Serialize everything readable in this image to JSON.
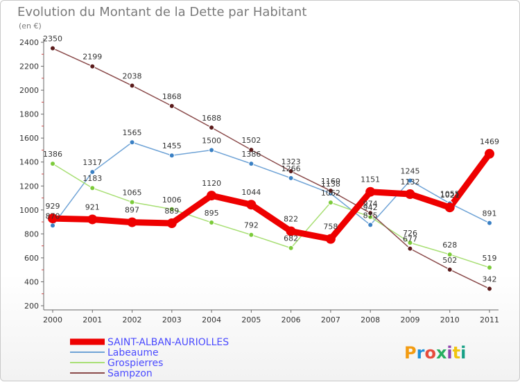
{
  "header": {
    "title": "Evolution du Montant de la Dette par Habitant",
    "unit": "(en €)"
  },
  "logo": {
    "text": "Proxiti",
    "colors": [
      "#f39c12",
      "#1f8fd6",
      "#e74c3c",
      "#27ae60",
      "#8e44ad",
      "#f1c40f",
      "#16a085"
    ]
  },
  "chart_data": {
    "type": "line",
    "title": "Evolution du Montant de la Dette par Habitant",
    "ylabel": "(en €)",
    "xlabel": "",
    "ylim": [
      200,
      2400
    ],
    "yticks": [
      200,
      400,
      600,
      800,
      1000,
      1200,
      1400,
      1600,
      1800,
      2000,
      2200,
      2400
    ],
    "categories": [
      "2000",
      "2001",
      "2002",
      "2003",
      "2004",
      "2005",
      "2006",
      "2007",
      "2008",
      "2009",
      "2010",
      "2011"
    ],
    "grid": false,
    "legend_position": "bottom-left",
    "series": [
      {
        "name": "Labeaume",
        "color": "#6fa3d6",
        "marker": "#3a80c4",
        "values": [
          870,
          1317,
          1565,
          1455,
          1500,
          1386,
          1266,
          1138,
          875,
          1245,
          1055,
          891
        ],
        "labels": [
          "870",
          "1317",
          "1565",
          "1455",
          "1500",
          "1386",
          "1266",
          "1138",
          "875",
          "1245",
          "1055",
          "891"
        ]
      },
      {
        "name": "Grospierres",
        "color": "#a8df74",
        "marker": "#7ccb3a",
        "values": [
          1386,
          1183,
          1065,
          1006,
          895,
          792,
          682,
          1062,
          942,
          726,
          628,
          519
        ],
        "labels": [
          "1386",
          "1183",
          "1065",
          "1006",
          "895",
          "792",
          "682",
          "1062",
          "942",
          "726",
          "628",
          "519"
        ]
      },
      {
        "name": "Sampzon",
        "color": "#8a4a4a",
        "marker": "#5a1a1a",
        "values": [
          2350,
          2199,
          2038,
          1868,
          1688,
          1502,
          1323,
          1160,
          974,
          677,
          502,
          342
        ],
        "labels": [
          "2350",
          "2199",
          "2038",
          "1868",
          "1688",
          "1502",
          "1323",
          "1160",
          "974",
          "677",
          "502",
          "342"
        ]
      },
      {
        "name": "SAINT-ALBAN-AURIOLLES",
        "color": "#ee0000",
        "marker": "#ee0000",
        "values": [
          929,
          921,
          897,
          889,
          1120,
          1044,
          822,
          758,
          1151,
          1132,
          1021,
          1469
        ],
        "labels": [
          "929",
          "921",
          "897",
          "889",
          "1120",
          "1044",
          "822",
          "758",
          "1151",
          "1132",
          "1021",
          "1469"
        ]
      }
    ],
    "legend": [
      "SAINT-ALBAN-AURIOLLES",
      "Labeaume",
      "Grospierres",
      "Sampzon"
    ]
  }
}
